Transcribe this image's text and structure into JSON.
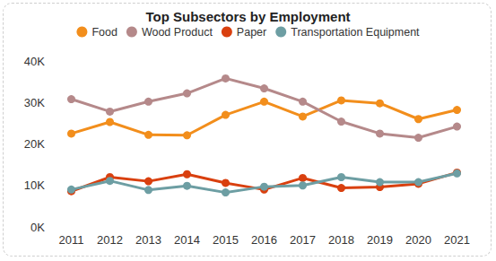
{
  "chart_data": {
    "type": "line",
    "title": "Top Subsectors by Employment",
    "categories": [
      "2011",
      "2012",
      "2013",
      "2014",
      "2015",
      "2016",
      "2017",
      "2018",
      "2019",
      "2020",
      "2021"
    ],
    "series": [
      {
        "name": "Food",
        "color": "#f28e1c",
        "values": [
          22500,
          25300,
          22200,
          22100,
          27000,
          30200,
          26600,
          30500,
          29800,
          26000,
          28200
        ]
      },
      {
        "name": "Wood Product",
        "color": "#b5898a",
        "values": [
          30800,
          27800,
          30200,
          32200,
          35800,
          33400,
          30200,
          25400,
          22500,
          21500,
          24200
        ]
      },
      {
        "name": "Paper",
        "color": "#d9400f",
        "values": [
          8600,
          12000,
          11000,
          12700,
          10600,
          9000,
          11800,
          9400,
          9600,
          10400,
          13100
        ]
      },
      {
        "name": "Transportation Equipment",
        "color": "#6d9ea3",
        "values": [
          9000,
          11100,
          8900,
          9900,
          8300,
          9700,
          10000,
          12000,
          10800,
          10800,
          12900
        ]
      }
    ],
    "ylim": [
      0,
      40000
    ],
    "yticks": [
      {
        "value": 0,
        "label": "0K"
      },
      {
        "value": 10000,
        "label": "10K"
      },
      {
        "value": 20000,
        "label": "20K"
      },
      {
        "value": 30000,
        "label": "30K"
      },
      {
        "value": 40000,
        "label": "40K"
      }
    ],
    "grid": false,
    "legend": "top",
    "marker": "circle"
  }
}
